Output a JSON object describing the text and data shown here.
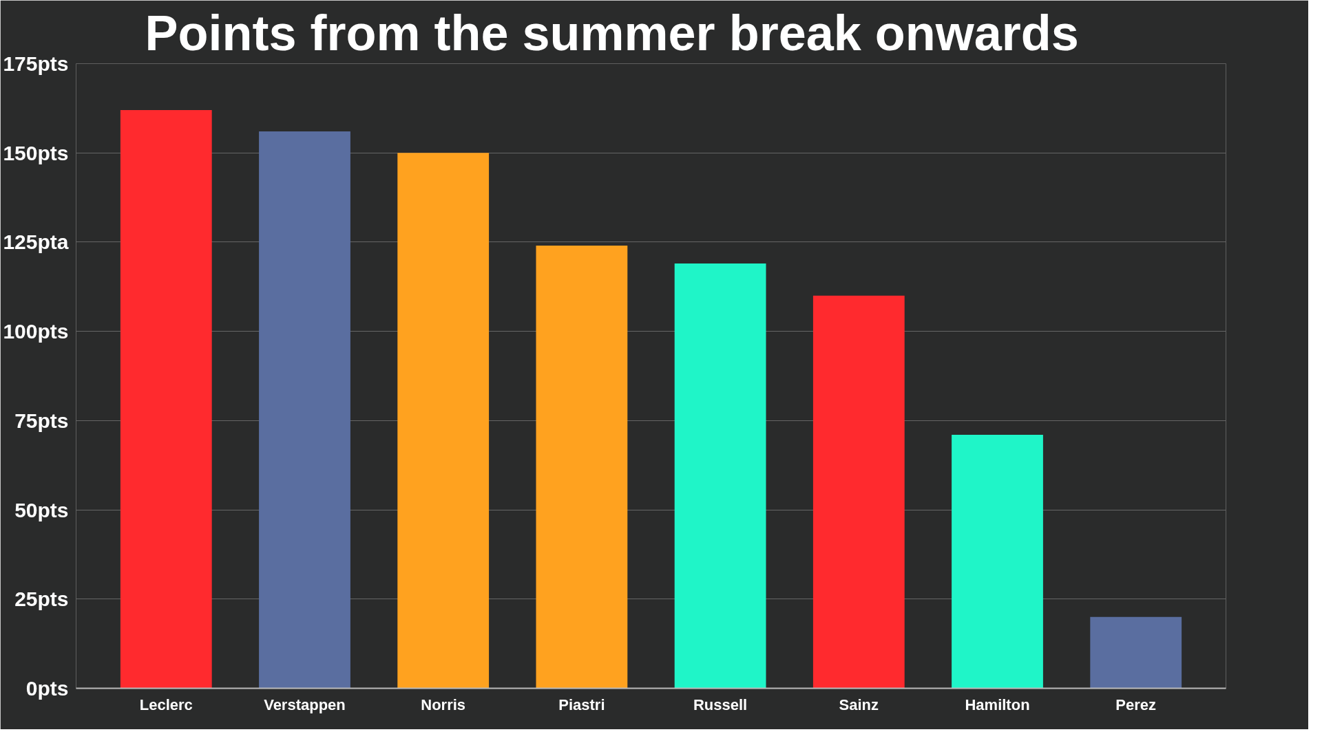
{
  "chart_data": {
    "type": "bar",
    "title": "Points from the summer break onwards",
    "categories": [
      "Leclerc",
      "Verstappen",
      "Norris",
      "Piastri",
      "Russell",
      "Sainz",
      "Hamilton",
      "Perez"
    ],
    "values": [
      162,
      156,
      150,
      124,
      119,
      110,
      71,
      20
    ],
    "colors": [
      "#ff2a2e",
      "#5a6ea0",
      "#ffa21f",
      "#ffa21f",
      "#1ff5c8",
      "#ff2a2e",
      "#1ff5c8",
      "#5a6ea0"
    ],
    "ylim": [
      0,
      175
    ],
    "yticks": [
      {
        "value": 0,
        "label": "0pts"
      },
      {
        "value": 25,
        "label": "25pts"
      },
      {
        "value": 50,
        "label": "50pts"
      },
      {
        "value": 75,
        "label": "75pts"
      },
      {
        "value": 100,
        "label": "100pts"
      },
      {
        "value": 125,
        "label": "125pta"
      },
      {
        "value": 150,
        "label": "150pts"
      },
      {
        "value": 175,
        "label": "175pts"
      }
    ],
    "grid": "y"
  }
}
